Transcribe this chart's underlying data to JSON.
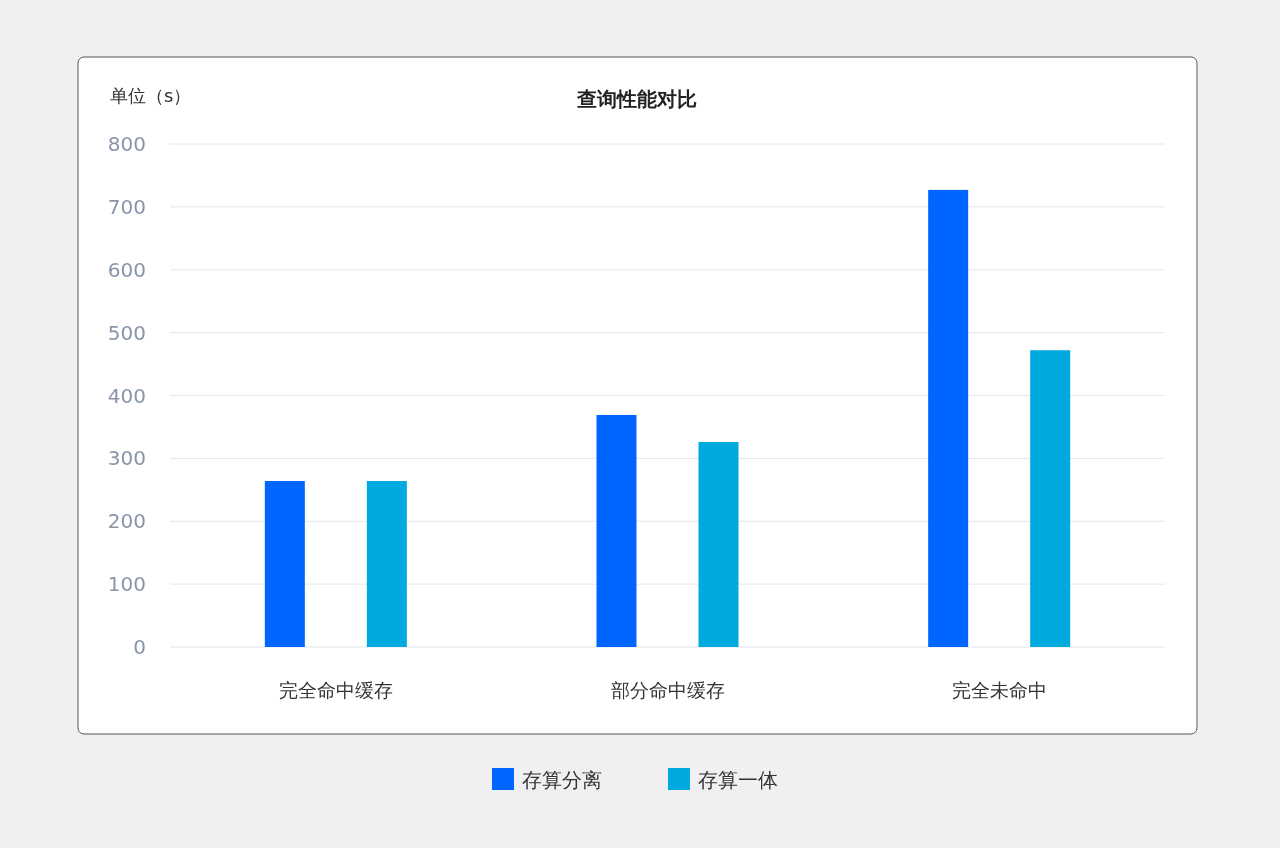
{
  "chart_data": {
    "type": "bar",
    "title": "查询性能对比",
    "ylabel": "单位（s）",
    "categories": [
      "完全命中缓存",
      "部分命中缓存",
      "完全未命中"
    ],
    "series": [
      {
        "name": "存算分离",
        "color": "#0066ff",
        "values": [
          264,
          369,
          727
        ]
      },
      {
        "name": "存算一体",
        "color": "#00aade",
        "values": [
          264,
          326,
          472
        ]
      }
    ],
    "ylim": [
      0,
      800
    ],
    "yticks": [
      0,
      100,
      200,
      300,
      400,
      500,
      600,
      700,
      800
    ],
    "grid": "y",
    "legend": "bottom"
  }
}
